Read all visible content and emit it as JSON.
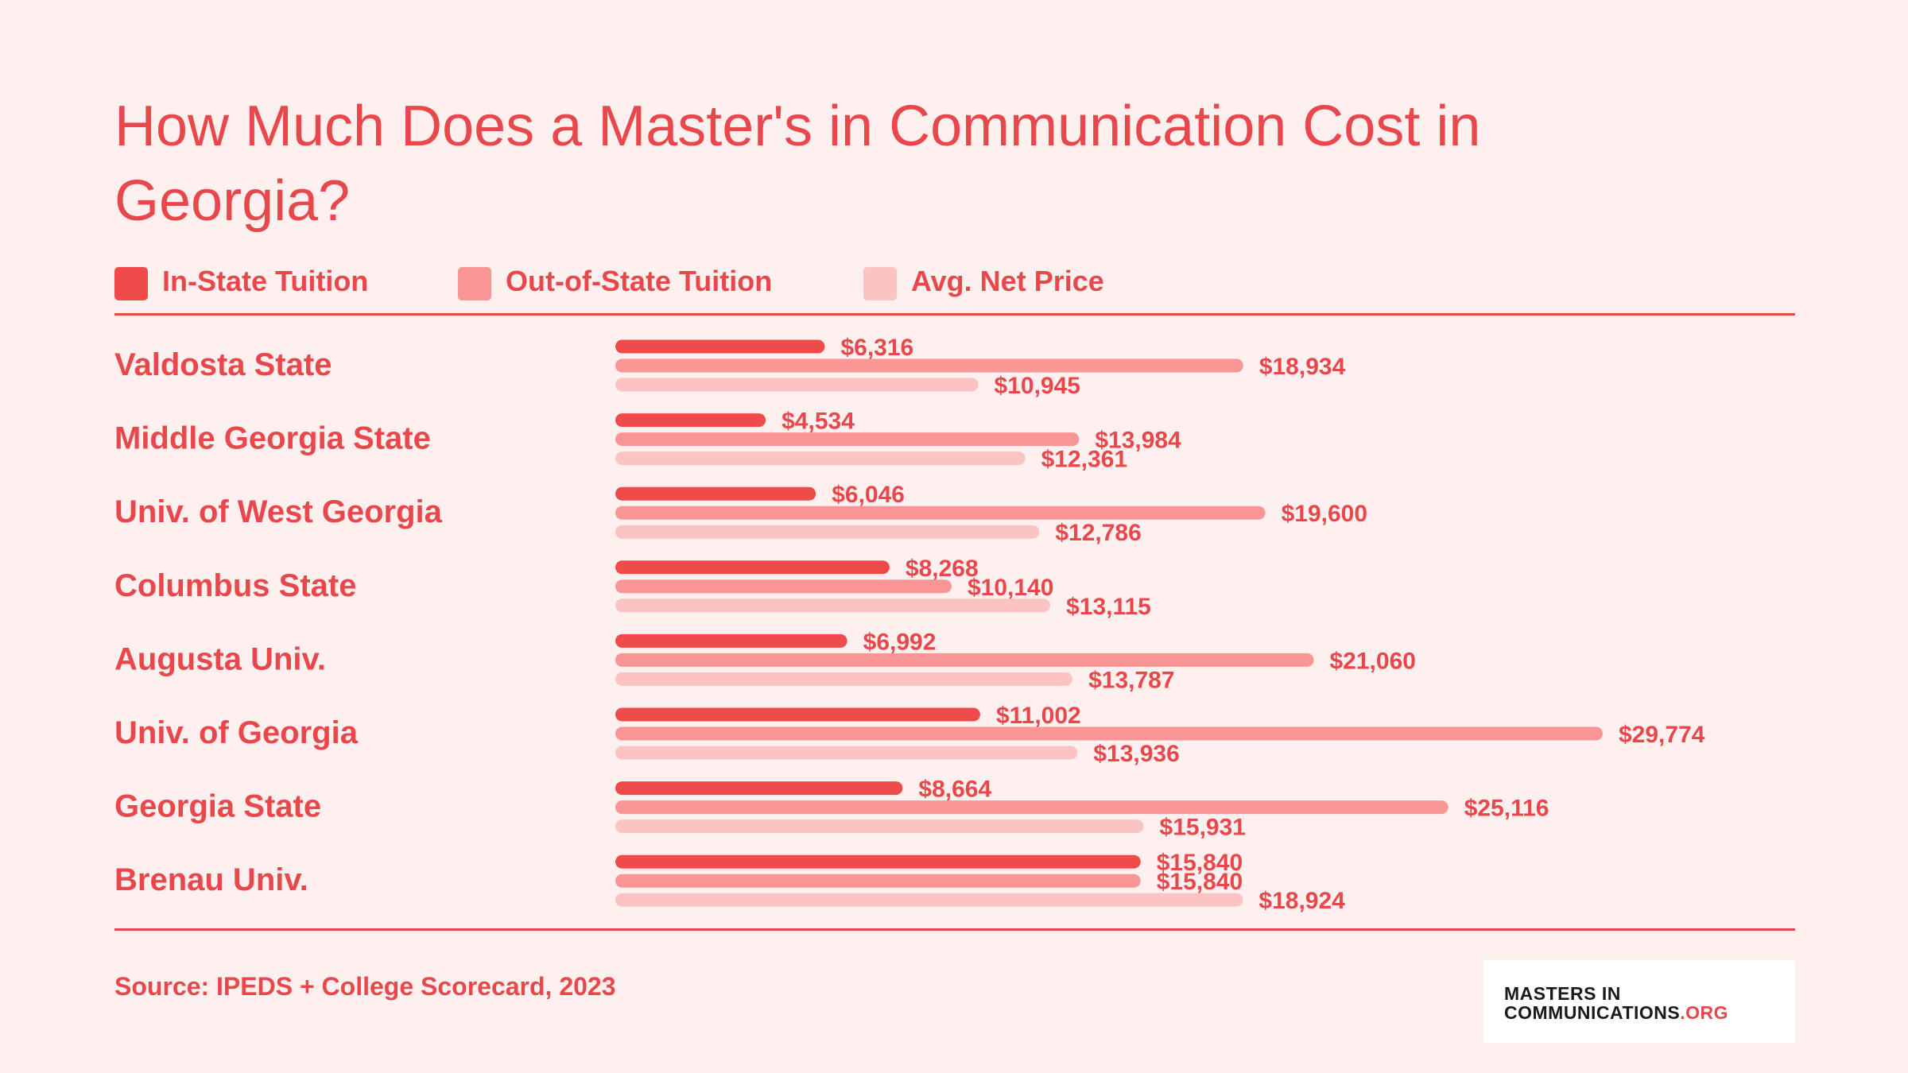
{
  "chart_data": {
    "type": "bar",
    "orientation": "horizontal",
    "title": "How Much Does a Master's in Communication Cost in Georgia?",
    "categories": [
      "Valdosta State",
      "Middle Georgia State",
      "Univ. of West Georgia",
      "Columbus State",
      "Augusta Univ.",
      "Univ. of Georgia",
      "Georgia State",
      "Brenau Univ."
    ],
    "series": [
      {
        "name": "In-State Tuition",
        "color": "#f04b4b",
        "values": [
          6316,
          4534,
          6046,
          8268,
          6992,
          11002,
          8664,
          15840
        ],
        "labels": [
          "$6,316",
          "$4,534",
          "$6,046",
          "$8,268",
          "$6,992",
          "$11,002",
          "$8,664",
          "$15,840"
        ]
      },
      {
        "name": "Out-of-State Tuition",
        "color": "#f79694",
        "values": [
          18934,
          13984,
          19600,
          10140,
          21060,
          29774,
          25116,
          15840
        ],
        "labels": [
          "$18,934",
          "$13,984",
          "$19,600",
          "$10,140",
          "$21,060",
          "$29,774",
          "$25,116",
          "$15,840"
        ]
      },
      {
        "name": "Avg. Net Price",
        "color": "#fbc3c2",
        "values": [
          10945,
          12361,
          12786,
          13115,
          13787,
          13936,
          15931,
          18924
        ],
        "labels": [
          "$10,945",
          "$12,361",
          "$12,786",
          "$13,115",
          "$13,787",
          "$13,936",
          "$15,931",
          "$18,924"
        ]
      }
    ],
    "xlim": [
      0,
      29774
    ],
    "grid": false,
    "legend_position": "top-left"
  },
  "colors": {
    "background": "#fff0f0",
    "accent": "#e8474b",
    "label_text": "#e8474b"
  },
  "footer": {
    "source": "Source: IPEDS + College Scorecard, 2023",
    "logo_line1": "MASTERS IN",
    "logo_line2": "COMMUNICATIONS",
    "logo_suffix": ".ORG"
  }
}
